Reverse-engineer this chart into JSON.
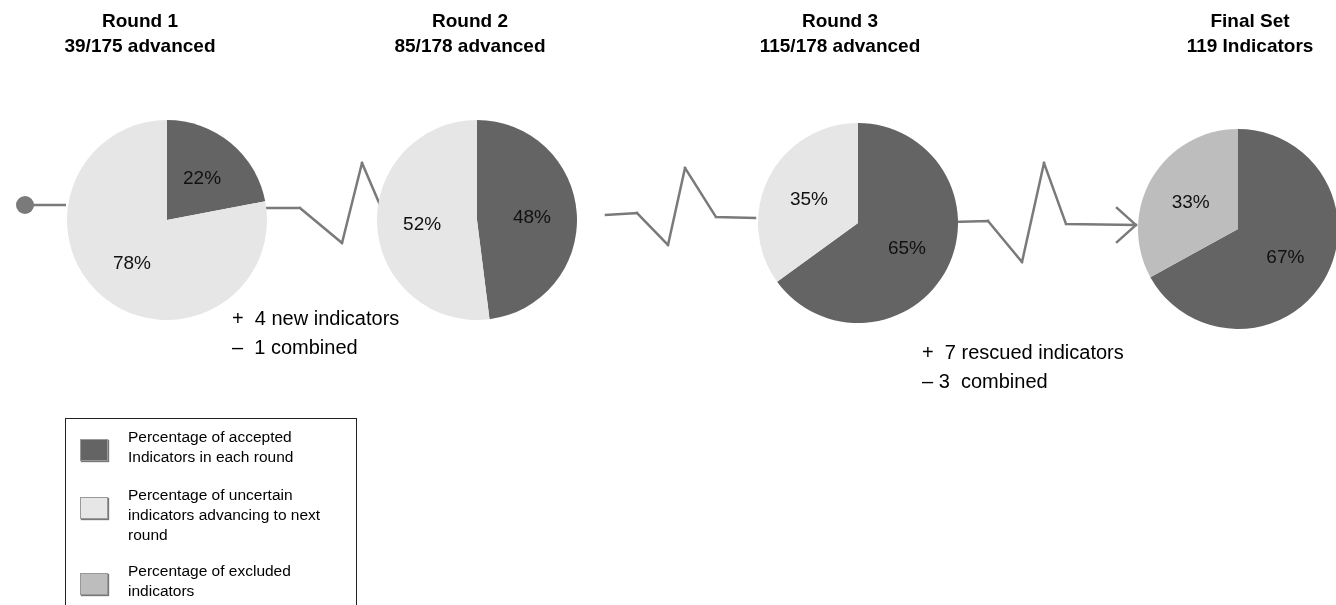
{
  "chart_data": [
    {
      "type": "pie",
      "title": "Round 1",
      "subtitle": "39/175 advanced",
      "categories": [
        null,
        null
      ],
      "values": [
        22,
        78
      ],
      "colors": [
        "#646464",
        "#e6e6e6"
      ],
      "value_labels": [
        "22%",
        "78%"
      ],
      "annotations": [
        "+  4 new indicators",
        "–  1 combined"
      ]
    },
    {
      "type": "pie",
      "title": "Round 2",
      "subtitle": "85/178 advanced",
      "categories": [
        null,
        null
      ],
      "values": [
        48,
        52
      ],
      "colors": [
        "#646464",
        "#e6e6e6"
      ],
      "value_labels": [
        "48%",
        "52%"
      ]
    },
    {
      "type": "pie",
      "title": "Round 3",
      "subtitle": "115/178 advanced",
      "categories": [
        null,
        null
      ],
      "values": [
        65,
        35
      ],
      "colors": [
        "#646464",
        "#e6e6e6"
      ],
      "value_labels": [
        "65%",
        "35%"
      ],
      "annotations": [
        "+  7 rescued indicators",
        "– 3  combined"
      ]
    },
    {
      "type": "pie",
      "title": "Final Set",
      "subtitle": "119 Indicators",
      "categories": [
        null,
        null
      ],
      "values": [
        67,
        33
      ],
      "colors": [
        "#646464",
        "#bdbdbd"
      ],
      "value_labels": [
        "67%",
        "33%"
      ]
    },
    {
      "type": "other",
      "annotations": [
        "Percentage of accepted Indicators in each round",
        "Percentage of uncertain indicators advancing to next round",
        "Percentage of excluded indicators"
      ],
      "colors": [
        "#646464",
        "#e6e6e6",
        "#bdbdbd"
      ]
    }
  ]
}
